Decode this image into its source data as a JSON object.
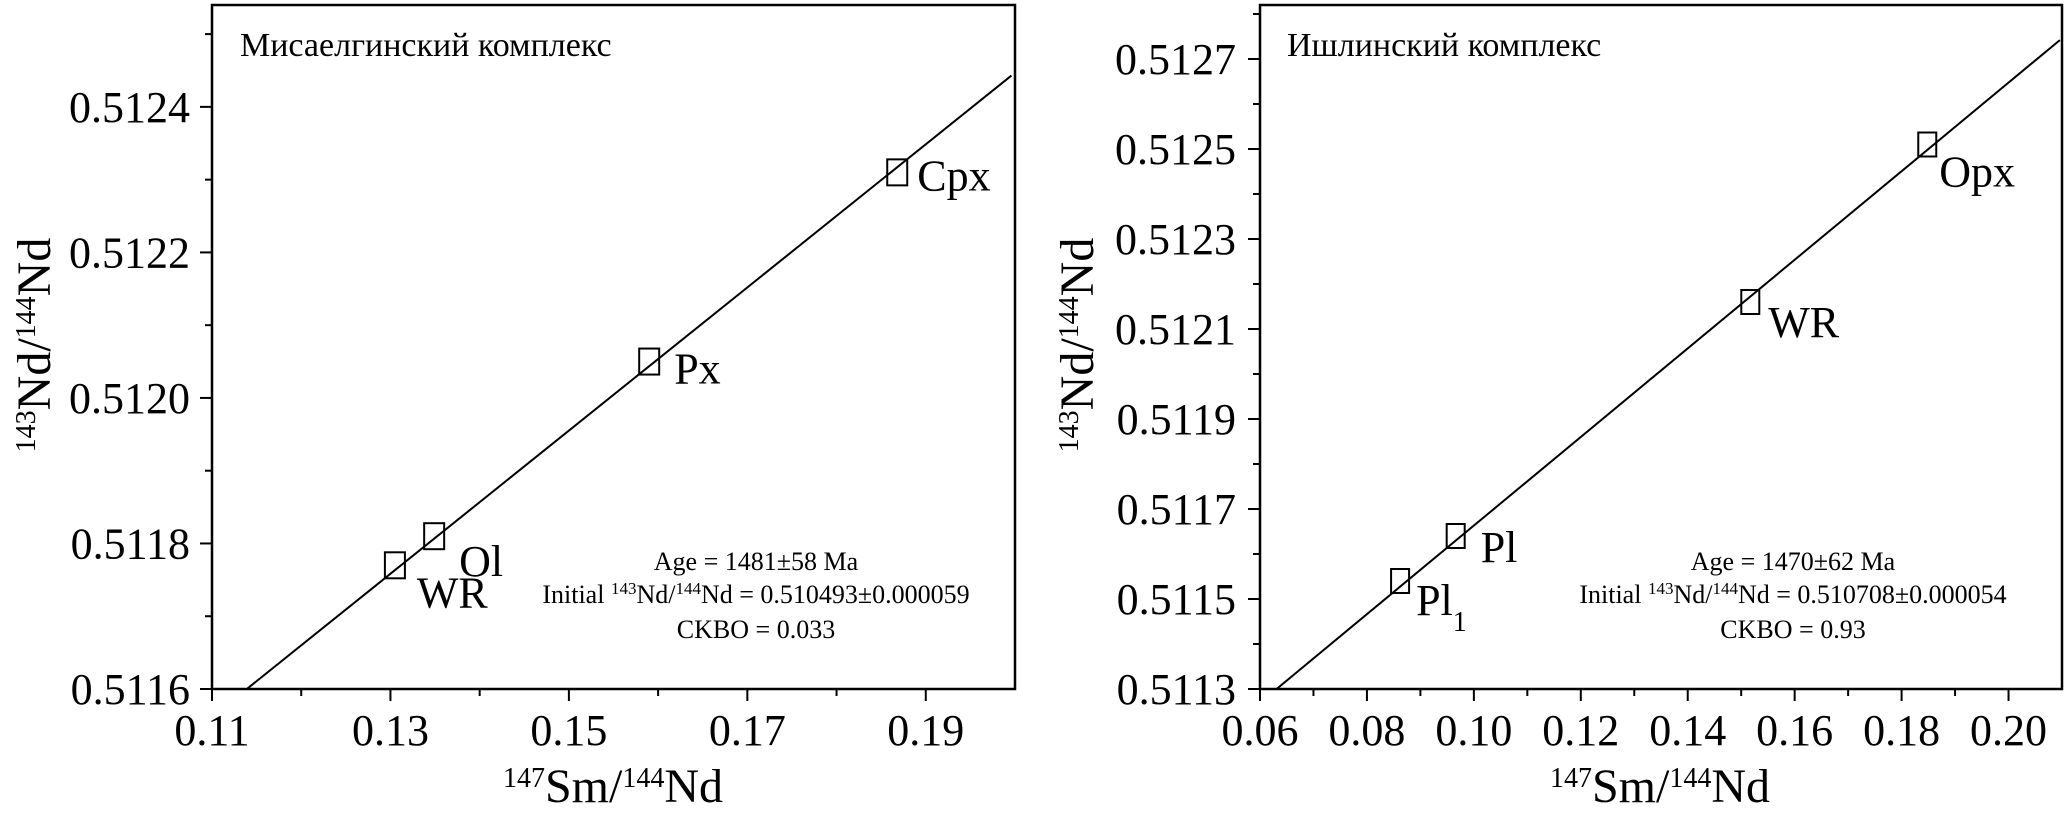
{
  "chart_data": [
    {
      "type": "scatter",
      "title": "Мисаелгинский комплекс",
      "xlabel": {
        "parts": [
          {
            "sup": "147"
          },
          {
            "text": "Sm/"
          },
          {
            "sup": "144"
          },
          {
            "text": "Nd"
          }
        ]
      },
      "ylabel": {
        "parts": [
          {
            "sup": "143"
          },
          {
            "text": "Nd/"
          },
          {
            "sup": "144"
          },
          {
            "text": "Nd"
          }
        ]
      },
      "xlim": [
        0.11,
        0.2
      ],
      "ylim": [
        0.5116,
        0.51254
      ],
      "xticks": [
        0.11,
        0.13,
        0.15,
        0.17,
        0.19
      ],
      "xtick_labels": [
        "0.11",
        "0.13",
        "0.15",
        "0.17",
        "0.19"
      ],
      "yticks": [
        0.5116,
        0.5118,
        0.512,
        0.5122,
        0.5124
      ],
      "ytick_labels": [
        "0.5116",
        "0.5118",
        "0.5120",
        "0.5122",
        "0.5124"
      ],
      "grid": false,
      "points": [
        {
          "label": "WR",
          "x": 0.1305,
          "y": 0.51177
        },
        {
          "label": "Ol",
          "x": 0.1349,
          "y": 0.51181
        },
        {
          "label": "Px",
          "x": 0.159,
          "y": 0.51205
        },
        {
          "label": "Cpx",
          "x": 0.1868,
          "y": 0.51231
        }
      ],
      "isochron": {
        "x": [
          0.1139,
          0.1996
        ],
        "y": [
          0.5116,
          0.512443
        ]
      },
      "stats": {
        "age": "Age = 1481±58 Ma",
        "initial_pre": "Initial ",
        "initial_sup1": "143",
        "initial_mid": "Nd/",
        "initial_sup2": "144",
        "initial_post": "Nd = 0.510493±0.000059",
        "mswd": "CKBO = 0.033"
      }
    },
    {
      "type": "scatter",
      "title": "Ишлинский комплекс",
      "xlabel": {
        "parts": [
          {
            "sup": "147"
          },
          {
            "text": "Sm/"
          },
          {
            "sup": "144"
          },
          {
            "text": "Nd"
          }
        ]
      },
      "ylabel": {
        "parts": [
          {
            "sup": "143"
          },
          {
            "text": "Nd/"
          },
          {
            "sup": "144"
          },
          {
            "text": "Nd"
          }
        ]
      },
      "xlim": [
        0.06,
        0.21
      ],
      "ylim": [
        0.5113,
        0.51282
      ],
      "xticks": [
        0.06,
        0.08,
        0.1,
        0.12,
        0.14,
        0.16,
        0.18,
        0.2
      ],
      "xtick_labels": [
        "0.06",
        "0.08",
        "0.10",
        "0.12",
        "0.14",
        "0.16",
        "0.18",
        "0.20"
      ],
      "yticks": [
        0.5113,
        0.5115,
        0.5117,
        0.5119,
        0.5121,
        0.5123,
        0.5125,
        0.5127
      ],
      "ytick_labels": [
        "0.5113",
        "0.5115",
        "0.5117",
        "0.5119",
        "0.5121",
        "0.5123",
        "0.5125",
        "0.5127"
      ],
      "grid": false,
      "points": [
        {
          "label": "Pl",
          "sub": "1",
          "x": 0.0862,
          "y": 0.51154
        },
        {
          "label": "Pl",
          "x": 0.0966,
          "y": 0.51164
        },
        {
          "label": "WR",
          "x": 0.1517,
          "y": 0.51216
        },
        {
          "label": "Opx",
          "x": 0.1848,
          "y": 0.51251
        }
      ],
      "isochron": {
        "x": [
          0.0631,
          0.2096
        ],
        "y": [
          0.5113,
          0.512742
        ]
      },
      "stats": {
        "age": "Age = 1470±62 Ma",
        "initial_pre": "Initial ",
        "initial_sup1": "143",
        "initial_mid": "Nd/",
        "initial_sup2": "144",
        "initial_post": "Nd = 0.510708±0.000054",
        "mswd": "CKBO = 0.93"
      }
    }
  ]
}
